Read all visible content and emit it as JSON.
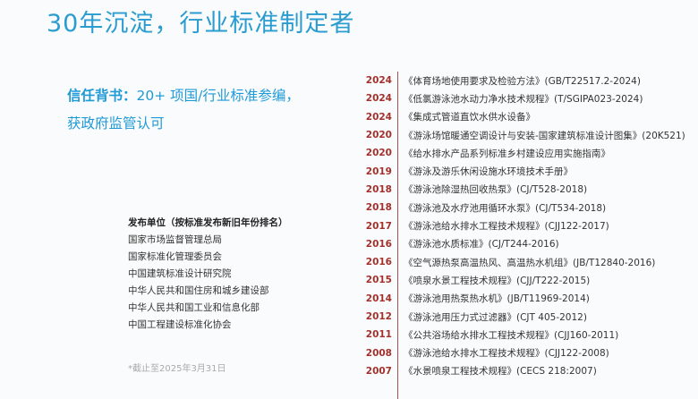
{
  "title": "30年沉淀，行业标准制定者",
  "trust": {
    "label": "信任背书：",
    "line1": "20+ 项国/行业标准参编，",
    "line2": "获政府监管认可"
  },
  "publishers": {
    "header": "发布单位（按标准发布新旧年份排名）",
    "items": [
      "国家市场监督管理总局",
      "国家标准化管理委员会",
      "中国建筑标准设计研究院",
      "中华人民共和国住房和城乡建设部",
      "中华人民共和国工业和信息化部",
      "中国工程建设标准化协会"
    ]
  },
  "note": "*截止至2025年3月31日",
  "standards": [
    {
      "year": "2024",
      "text": "《体育场地使用要求及检验方法》(GB/T22517.2-2024)"
    },
    {
      "year": "2024",
      "text": "《低氯游泳池水动力净水技术规程》(T/SGIPA023-2024)"
    },
    {
      "year": "2024",
      "text": "《集成式管道直饮水供水设备》"
    },
    {
      "year": "2020",
      "text": "《游泳场馆暖通空调设计与安装-国家建筑标准设计图集》(20K521)"
    },
    {
      "year": "2020",
      "text": "《给水排水产品系列标准乡村建设应用实施指南》"
    },
    {
      "year": "2019",
      "text": "《游泳及游乐休闲设施水环境技术手册》"
    },
    {
      "year": "2018",
      "text": "《游泳池除湿热回收热泵》(CJ/T528-2018)"
    },
    {
      "year": "2018",
      "text": "《游泳池及水疗池用循环水泵》(CJ/T534-2018)"
    },
    {
      "year": "2017",
      "text": "《游泳池给水排水工程技术规程》(CJJ122-2017)"
    },
    {
      "year": "2016",
      "text": "《游泳池水质标准》(CJ/T244-2016)"
    },
    {
      "year": "2016",
      "text": "《空气源热泵高温热风、高温热水机组》(JB/T12840-2016)"
    },
    {
      "year": "2015",
      "text": "《喷泉水景工程技术规程》(CJJ/T222-2015)"
    },
    {
      "year": "2014",
      "text": "《游泳池用热泵热水机》(JB/T11969-2014)"
    },
    {
      "year": "2012",
      "text": "《游泳池用压力式过滤器》(CJT 405-2012)"
    },
    {
      "year": "2011",
      "text": "《公共浴场给水排水工程技术规程》(CJJ160-2011)"
    },
    {
      "year": "2008",
      "text": "《游泳池给水排水工程技术规程》(CJJ122-2008)"
    },
    {
      "year": "2007",
      "text": "《水景喷泉工程技术规程》(CECS 218:2007)"
    }
  ]
}
